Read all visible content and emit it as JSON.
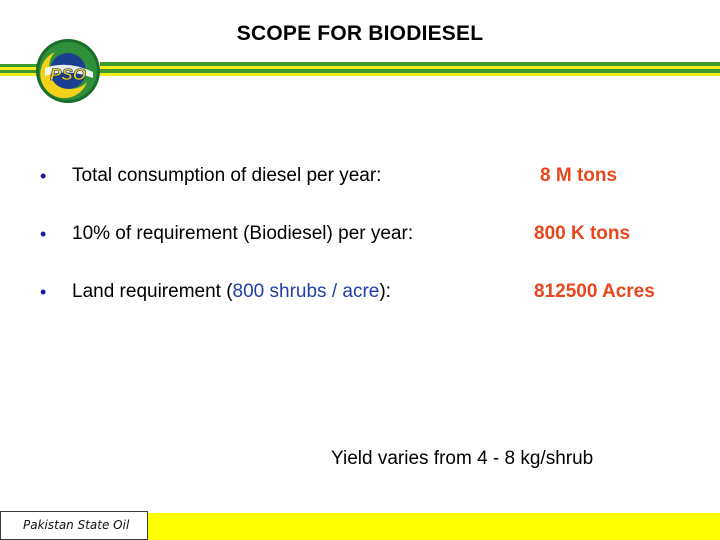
{
  "slide": {
    "title": "SCOPE FOR BIODIESEL",
    "logo_text": "PSO"
  },
  "bullets": [
    {
      "label": "Total consumption of diesel per year:",
      "value": "8 M tons"
    },
    {
      "label": "10% of requirement (Biodiesel) per year:",
      "value": "800 K tons"
    },
    {
      "label_prefix": "Land requirement (",
      "label_highlight": "800  shrubs / acre",
      "label_suffix": "):",
      "value": "812500 Acres"
    }
  ],
  "bullet_symbol": "•",
  "yield_note": "Yield varies from  4 - 8 kg/shrub",
  "footer": {
    "label": "Pakistan State Oil"
  },
  "colors": {
    "stripe_green": "#3f9a2e",
    "stripe_yellow": "#f4ea1c",
    "accent_value": "#e8471e",
    "highlight_blue": "#1f3fa8",
    "bullet_blue": "#1a1aa6",
    "footer_yellow": "#ffff00"
  }
}
